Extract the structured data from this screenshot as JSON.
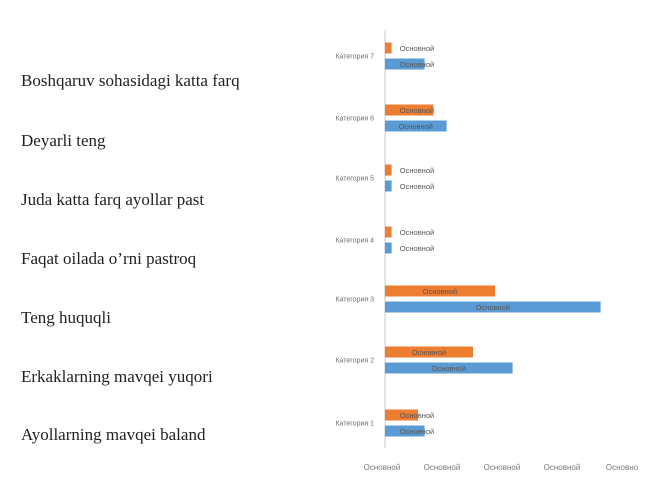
{
  "left_labels": [
    "Boshqaruv sohasidagi katta farq",
    "Deyarli teng",
    "Juda katta farq ayollar past",
    "Faqat oilada o’rni pastroq",
    "Teng huquqli",
    "Erkaklarning mavqei yuqori",
    "Ayollarning mavqei baland"
  ],
  "chart_data": {
    "type": "bar",
    "orientation": "horizontal",
    "categories": [
      "Категория 7",
      "Категория 6",
      "Категория 5",
      "Категория 4",
      "Категория 3",
      "Категория 2",
      "Категория 1"
    ],
    "series": [
      {
        "color": "#ed7d31",
        "values": [
          3,
          22,
          3,
          3,
          50,
          40,
          15
        ],
        "labels": [
          "Основной",
          "Основной",
          "Основной",
          "Основной",
          "Основной",
          "Основной",
          "Основной"
        ]
      },
      {
        "color": "#5b9bd5",
        "values": [
          18,
          28,
          3,
          3,
          98,
          58,
          18
        ],
        "labels": [
          "Основной",
          "Основной",
          "Основной",
          "Основной",
          "Основной",
          "Основной",
          "Основной"
        ]
      }
    ],
    "x_tick_labels": [
      "Основной",
      "Основной",
      "Основной",
      "Основной",
      "Основно"
    ],
    "xlim": [
      0,
      100
    ],
    "grid": false,
    "legend": "none"
  }
}
